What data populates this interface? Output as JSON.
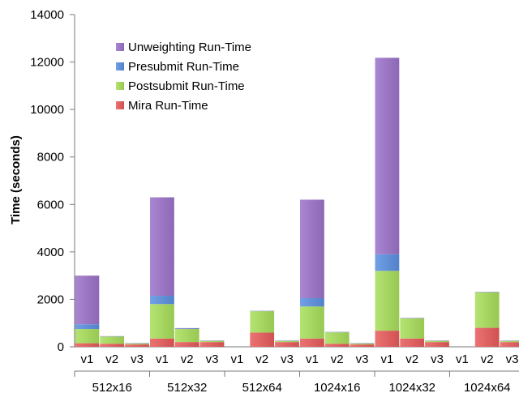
{
  "chart_data": {
    "type": "bar",
    "stacked": true,
    "title": "",
    "xlabel": "",
    "ylabel": "Time (seconds)",
    "ylim": [
      0,
      14000
    ],
    "yticks": [
      0,
      2000,
      4000,
      6000,
      8000,
      10000,
      12000,
      14000
    ],
    "grid": false,
    "legend_position": "top-left",
    "groups": [
      "512x16",
      "512x32",
      "512x64",
      "1024x16",
      "1024x32",
      "1024x64"
    ],
    "versions": [
      "v1",
      "v2",
      "v3"
    ],
    "series": [
      {
        "name": "Mira Run-Time",
        "color": "#e85a5a",
        "values": [
          [
            150,
            130,
            100
          ],
          [
            350,
            200,
            200
          ],
          [
            0,
            600,
            200
          ],
          [
            350,
            130,
            100
          ],
          [
            680,
            350,
            200
          ],
          [
            0,
            800,
            200
          ]
        ]
      },
      {
        "name": "Postsubmit Run-Time",
        "color": "#a8de5a",
        "values": [
          [
            600,
            300,
            40
          ],
          [
            1450,
            550,
            50
          ],
          [
            0,
            900,
            50
          ],
          [
            1350,
            480,
            40
          ],
          [
            2520,
            850,
            50
          ],
          [
            0,
            1500,
            50
          ]
        ]
      },
      {
        "name": "Presubmit Run-Time",
        "color": "#5a8fe0",
        "values": [
          [
            200,
            10,
            10
          ],
          [
            350,
            20,
            10
          ],
          [
            0,
            10,
            10
          ],
          [
            350,
            10,
            10
          ],
          [
            700,
            10,
            10
          ],
          [
            0,
            10,
            10
          ]
        ]
      },
      {
        "name": "Unweighting Run-Time",
        "color": "#9b72c9",
        "values": [
          [
            2050,
            10,
            10
          ],
          [
            4150,
            20,
            10
          ],
          [
            0,
            10,
            10
          ],
          [
            4150,
            10,
            10
          ],
          [
            8280,
            10,
            10
          ],
          [
            0,
            10,
            10
          ]
        ]
      }
    ],
    "legend_order": [
      "Unweighting Run-Time",
      "Presubmit Run-Time",
      "Postsubmit Run-Time",
      "Mira Run-Time"
    ]
  }
}
